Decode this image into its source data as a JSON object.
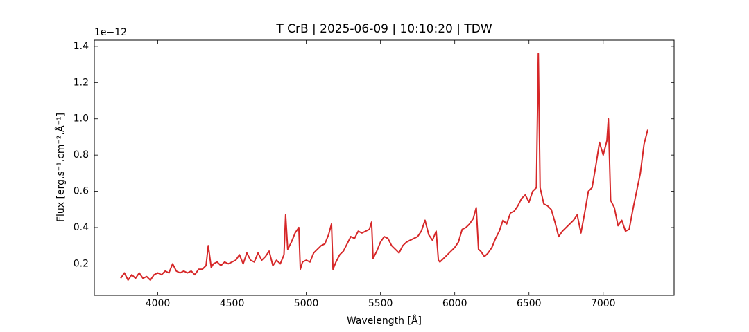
{
  "chart_data": {
    "type": "line",
    "title": "T CrB | 2025-06-09 | 10:10:20 | TDW",
    "x_label": "Wavelength [Å]",
    "y_label": "Flux [erg.s⁻¹.cm⁻².Å⁻¹]",
    "offset_label": "1e−12",
    "xlim": [
      3572.5,
      7477.5
    ],
    "ylim": [
      0.026,
      1.434
    ],
    "xticks": [
      4000,
      4500,
      5000,
      5500,
      6000,
      6500,
      7000
    ],
    "yticks": [
      0.2,
      0.4,
      0.6,
      0.8,
      {
        "value": 1,
        "label": "1.0"
      },
      1.2,
      1.4
    ],
    "grid": false,
    "x": [
      3750,
      3775,
      3800,
      3825,
      3850,
      3875,
      3900,
      3925,
      3950,
      3975,
      4000,
      4025,
      4050,
      4075,
      4100,
      4125,
      4150,
      4175,
      4200,
      4225,
      4250,
      4275,
      4300,
      4325,
      4340,
      4360,
      4375,
      4400,
      4425,
      4450,
      4475,
      4500,
      4525,
      4550,
      4575,
      4600,
      4625,
      4650,
      4675,
      4700,
      4725,
      4750,
      4775,
      4800,
      4825,
      4850,
      4861,
      4875,
      4900,
      4925,
      4950,
      4960,
      4975,
      5000,
      5025,
      5050,
      5075,
      5100,
      5125,
      5150,
      5170,
      5180,
      5200,
      5225,
      5250,
      5275,
      5300,
      5325,
      5350,
      5375,
      5400,
      5425,
      5440,
      5450,
      5475,
      5500,
      5525,
      5550,
      5575,
      5600,
      5625,
      5650,
      5675,
      5700,
      5725,
      5750,
      5775,
      5800,
      5825,
      5850,
      5875,
      5890,
      5900,
      5925,
      5950,
      5975,
      6000,
      6025,
      6050,
      6075,
      6100,
      6125,
      6145,
      6160,
      6175,
      6200,
      6225,
      6250,
      6275,
      6300,
      6325,
      6350,
      6375,
      6400,
      6425,
      6450,
      6475,
      6500,
      6525,
      6550,
      6563,
      6575,
      6600,
      6625,
      6650,
      6675,
      6700,
      6725,
      6750,
      6775,
      6800,
      6825,
      6850,
      6875,
      6900,
      6925,
      6950,
      6975,
      7000,
      7025,
      7035,
      7050,
      7075,
      7100,
      7125,
      7150,
      7175,
      7200,
      7225,
      7250,
      7275,
      7300
    ],
    "series": [
      {
        "name": "T CrB",
        "color": "#d62728",
        "values": [
          0.12,
          0.15,
          0.11,
          0.14,
          0.12,
          0.15,
          0.12,
          0.13,
          0.11,
          0.14,
          0.15,
          0.14,
          0.16,
          0.15,
          0.2,
          0.16,
          0.15,
          0.16,
          0.15,
          0.16,
          0.14,
          0.17,
          0.17,
          0.19,
          0.3,
          0.18,
          0.2,
          0.21,
          0.19,
          0.21,
          0.2,
          0.21,
          0.22,
          0.25,
          0.2,
          0.26,
          0.22,
          0.21,
          0.26,
          0.22,
          0.24,
          0.27,
          0.19,
          0.22,
          0.2,
          0.25,
          0.47,
          0.28,
          0.32,
          0.37,
          0.4,
          0.17,
          0.21,
          0.22,
          0.21,
          0.26,
          0.28,
          0.3,
          0.31,
          0.36,
          0.42,
          0.17,
          0.21,
          0.25,
          0.27,
          0.31,
          0.35,
          0.34,
          0.38,
          0.37,
          0.38,
          0.39,
          0.43,
          0.23,
          0.27,
          0.32,
          0.35,
          0.34,
          0.3,
          0.28,
          0.26,
          0.3,
          0.32,
          0.33,
          0.34,
          0.35,
          0.38,
          0.44,
          0.36,
          0.33,
          0.38,
          0.22,
          0.21,
          0.23,
          0.25,
          0.27,
          0.29,
          0.32,
          0.39,
          0.4,
          0.42,
          0.45,
          0.51,
          0.28,
          0.27,
          0.24,
          0.26,
          0.29,
          0.34,
          0.38,
          0.44,
          0.42,
          0.48,
          0.49,
          0.52,
          0.56,
          0.58,
          0.54,
          0.6,
          0.62,
          1.36,
          0.62,
          0.53,
          0.52,
          0.5,
          0.43,
          0.35,
          0.38,
          0.4,
          0.42,
          0.44,
          0.47,
          0.37,
          0.48,
          0.6,
          0.62,
          0.74,
          0.87,
          0.8,
          0.88,
          1.0,
          0.55,
          0.51,
          0.41,
          0.44,
          0.38,
          0.39,
          0.5,
          0.6,
          0.7,
          0.86,
          0.94
        ]
      }
    ]
  }
}
